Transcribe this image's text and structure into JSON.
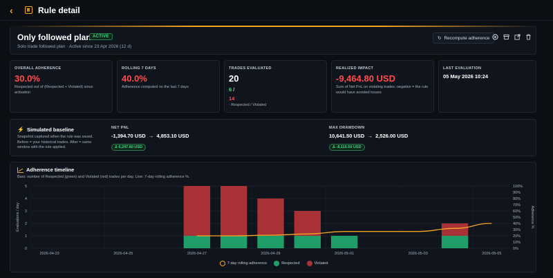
{
  "header": {
    "title": "Rule detail"
  },
  "rule": {
    "name": "Only followed plan",
    "status": "ACTIVE",
    "subtitle": "Solo trade followed plan  ·  Active since 23 Apr 2026 (12 d)",
    "recompute_label": "Recompute adherence",
    "icons": [
      "target-icon",
      "archive-icon",
      "external-link-icon",
      "trash-icon"
    ]
  },
  "stats": [
    {
      "label": "OVERALL ADHERENCE",
      "value": "30.0%",
      "desc": "Respected out of (Respected + Violated) since activation"
    },
    {
      "label": "ROLLING 7 DAYS",
      "value": "40.0%",
      "desc": "Adherence computed on the last 7 days"
    },
    {
      "label": "TRADES EVALUATED",
      "value": "20",
      "respected": "6",
      "violated": "14",
      "desc": "· Respected / Violated"
    },
    {
      "label": "REALIZED IMPACT",
      "value": "-9,464.80 USD",
      "desc": "Sum of Net PnL on violating trades: negative = the rule would have avoided losses"
    },
    {
      "label": "LAST EVALUATION",
      "value": "05 May 2026 10:24"
    }
  ],
  "baseline": {
    "title": "Simulated baseline",
    "desc": "Snapshot captured when the rule was saved. Before = your historical trades. After = same window with the rule applied.",
    "net_pnl": {
      "label": "NET PNL",
      "before": "-1,394.70 USD",
      "after": "4,853.10 USD",
      "delta": "Δ 6,247.80 USD"
    },
    "max_drawdown": {
      "label": "MAX DRAWDOWN",
      "before": "10,641.50 USD",
      "after": "2,526.00 USD",
      "delta": "Δ -8,115.50 USD"
    }
  },
  "timeline": {
    "title": "Adherence timeline",
    "subtitle": "Bars: number of Respected (green) and Violated (red) trades per day. Line: 7-day rolling adherence %.",
    "legend": [
      "7-day rolling adherence",
      "Respected",
      "Violated"
    ]
  },
  "chart_data": {
    "type": "bar",
    "x_tick_labels": [
      "2026-04-23",
      "2026-04-25",
      "2026-04-27",
      "2026-04-29",
      "2026-05-01",
      "2026-05-03",
      "2026-05-05"
    ],
    "categories": [
      "2026-04-23",
      "2026-04-24",
      "2026-04-25",
      "2026-04-26",
      "2026-04-27",
      "2026-04-28",
      "2026-04-29",
      "2026-04-30",
      "2026-05-01",
      "2026-05-02",
      "2026-05-03",
      "2026-05-04",
      "2026-05-05"
    ],
    "series": [
      {
        "name": "Respected",
        "values": [
          0,
          0,
          0,
          0,
          1,
          1,
          1,
          1,
          1,
          0,
          0,
          1,
          0
        ],
        "color": "#1f9e6a"
      },
      {
        "name": "Violated",
        "values": [
          0,
          0,
          0,
          0,
          4,
          4,
          3,
          2,
          0,
          0,
          0,
          1,
          0
        ],
        "color": "#a83236"
      }
    ],
    "line": {
      "name": "7-day rolling adherence",
      "x": [
        "2026-04-27",
        "2026-04-28",
        "2026-04-29",
        "2026-04-30",
        "2026-05-01",
        "2026-05-02",
        "2026-05-03",
        "2026-05-04",
        "2026-05-05"
      ],
      "values": [
        20,
        20,
        21,
        23,
        27,
        27,
        27,
        32,
        40
      ],
      "color": "#f5a623"
    },
    "ylabel_left": "Evaluations / day",
    "ylabel_right": "Adherence %",
    "y_left_ticks": [
      "0",
      "1",
      "2",
      "3",
      "4",
      "5"
    ],
    "y_right_ticks": [
      "0%",
      "10%",
      "20%",
      "30%",
      "40%",
      "50%",
      "60%",
      "70%",
      "80%",
      "90%",
      "100%"
    ],
    "ylim_left": [
      0,
      5
    ],
    "ylim_right": [
      0,
      100
    ],
    "grid": true,
    "legend": "bottom"
  }
}
